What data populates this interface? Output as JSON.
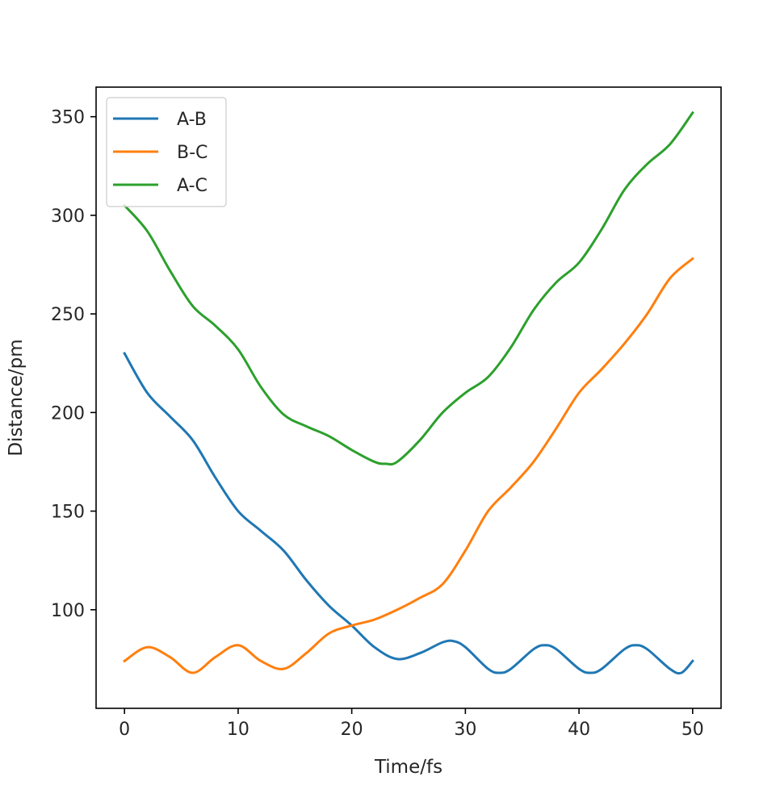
{
  "chart_data": {
    "type": "line",
    "title": "",
    "xlabel": "Time/fs",
    "ylabel": "Distance/pm",
    "xlim": [
      -2.5,
      52.5
    ],
    "ylim": [
      50,
      365
    ],
    "xticks": [
      0,
      10,
      20,
      30,
      40,
      50
    ],
    "yticks": [
      100,
      150,
      200,
      250,
      300,
      350
    ],
    "grid": false,
    "legend_position": "upper left",
    "series": [
      {
        "name": "A-B",
        "color": "#1f77b4",
        "x": [
          0,
          2,
          4,
          6,
          8,
          10,
          12,
          14,
          16,
          18,
          20,
          22,
          24,
          26,
          28,
          29,
          30,
          32,
          33,
          34,
          36,
          37,
          38,
          40,
          41,
          42,
          44,
          45,
          46,
          48,
          49,
          50
        ],
        "y": [
          230,
          210,
          198,
          186,
          167,
          150,
          140,
          130,
          115,
          102,
          92,
          81,
          75,
          78,
          83.5,
          84,
          81,
          70,
          68,
          70,
          80,
          82,
          80,
          70,
          68,
          70,
          80,
          82,
          80,
          70,
          68,
          74
        ]
      },
      {
        "name": "B-C",
        "color": "#ff7f0e",
        "x": [
          0,
          2,
          4,
          6,
          8,
          10,
          12,
          14,
          16,
          18,
          20,
          22,
          24,
          26,
          28,
          30,
          32,
          34,
          36,
          38,
          40,
          42,
          44,
          46,
          48,
          50
        ],
        "y": [
          74,
          81,
          76,
          68,
          76,
          82,
          74,
          70,
          78,
          88,
          92,
          95,
          100,
          106,
          113,
          130,
          150,
          162,
          175,
          192,
          210,
          222,
          235,
          250,
          268,
          278
        ]
      },
      {
        "name": "A-C",
        "color": "#2ca02c",
        "x": [
          0,
          2,
          4,
          6,
          8,
          10,
          12,
          14,
          16,
          18,
          20,
          22,
          23,
          24,
          26,
          28,
          30,
          32,
          34,
          36,
          38,
          40,
          42,
          44,
          46,
          48,
          50
        ],
        "y": [
          305,
          292,
          272,
          254,
          244,
          232,
          213,
          199,
          193,
          188,
          181,
          175,
          174,
          175,
          186,
          200,
          210,
          218,
          233,
          252,
          266,
          276,
          293,
          313,
          326,
          336,
          352
        ]
      }
    ]
  }
}
